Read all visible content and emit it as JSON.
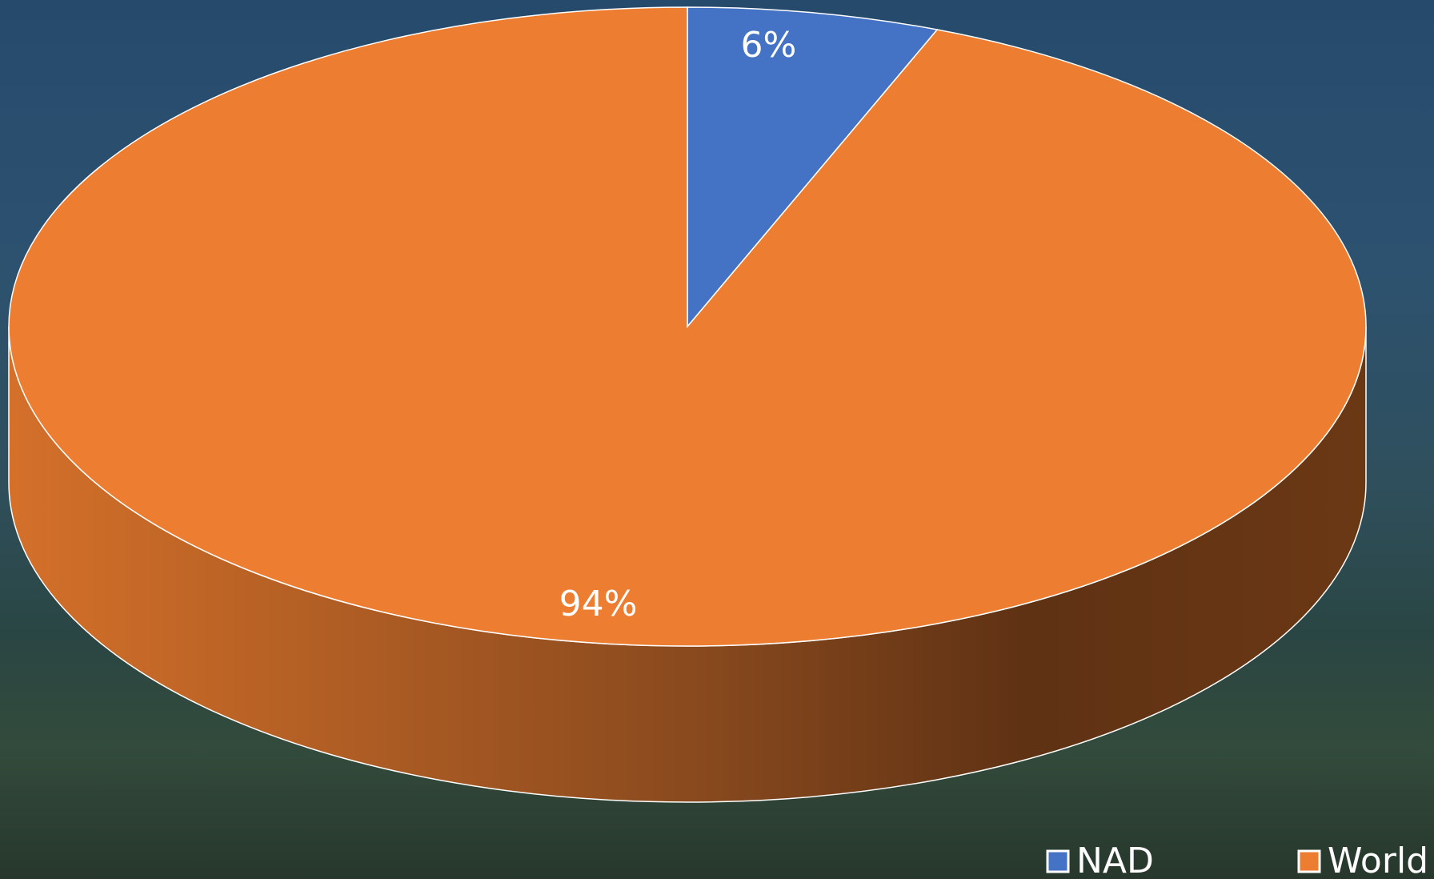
{
  "chart_data": {
    "type": "pie3d",
    "categories": [
      "NAD",
      "World"
    ],
    "values": [
      6,
      94
    ],
    "value_labels": [
      "6%",
      "94%"
    ],
    "colors": [
      "#4472c4",
      "#ed7d31"
    ],
    "legend": "bottom-right"
  }
}
